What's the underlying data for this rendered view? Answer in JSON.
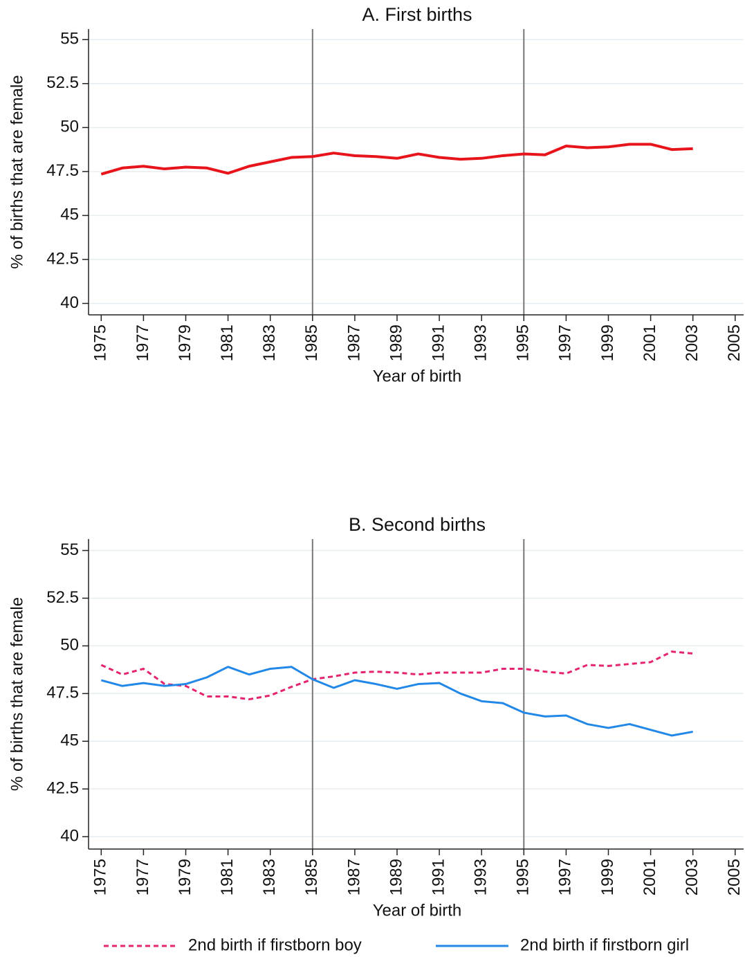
{
  "chart_data": [
    {
      "type": "line",
      "title": "A. First births",
      "xlabel": "Year of birth",
      "ylabel": "% of births that are female",
      "x": [
        1975,
        1976,
        1977,
        1978,
        1979,
        1980,
        1981,
        1982,
        1983,
        1984,
        1985,
        1986,
        1987,
        1988,
        1989,
        1990,
        1991,
        1992,
        1993,
        1994,
        1995,
        1996,
        1997,
        1998,
        1999,
        2000,
        2001,
        2002,
        2003
      ],
      "series": [
        {
          "color": "#e8141c",
          "linestyle": "solid",
          "values": [
            47.35,
            47.7,
            47.8,
            47.65,
            47.75,
            47.7,
            47.4,
            47.8,
            48.05,
            48.3,
            48.35,
            48.55,
            48.4,
            48.35,
            48.25,
            48.5,
            48.3,
            48.2,
            48.25,
            48.4,
            48.5,
            48.45,
            48.95,
            48.85,
            48.9,
            49.05,
            49.05,
            48.75,
            48.8
          ]
        }
      ],
      "xlim": [
        1974.4,
        2005.4
      ],
      "ylim": [
        39.35,
        55.6
      ],
      "xticks": [
        1975,
        1977,
        1979,
        1981,
        1983,
        1985,
        1987,
        1989,
        1991,
        1993,
        1995,
        1997,
        1999,
        2001,
        2003,
        2005
      ],
      "yticks": [
        40,
        42.5,
        45,
        47.5,
        50,
        52.5,
        55
      ],
      "xlines": [
        1985,
        1995
      ],
      "grid": true
    },
    {
      "type": "line",
      "title": "B. Second births",
      "xlabel": "Year of birth",
      "ylabel": "% of births that are female",
      "x": [
        1975,
        1976,
        1977,
        1978,
        1979,
        1980,
        1981,
        1982,
        1983,
        1984,
        1985,
        1986,
        1987,
        1988,
        1989,
        1990,
        1991,
        1992,
        1993,
        1994,
        1995,
        1996,
        1997,
        1998,
        1999,
        2000,
        2001,
        2002,
        2003
      ],
      "series": [
        {
          "name": "2nd birth if firstborn boy",
          "color": "#e5246f",
          "linestyle": "dashed",
          "values": [
            49.0,
            48.5,
            48.8,
            48.0,
            47.9,
            47.35,
            47.35,
            47.2,
            47.4,
            47.85,
            48.25,
            48.4,
            48.6,
            48.65,
            48.6,
            48.5,
            48.6,
            48.6,
            48.6,
            48.8,
            48.8,
            48.65,
            48.55,
            49.0,
            48.95,
            49.05,
            49.15,
            49.7,
            49.6
          ]
        },
        {
          "name": "2nd birth if firstborn girl",
          "color": "#2288e8",
          "linestyle": "solid",
          "values": [
            48.2,
            47.9,
            48.05,
            47.9,
            48.0,
            48.35,
            48.9,
            48.5,
            48.8,
            48.9,
            48.25,
            47.8,
            48.2,
            48.0,
            47.75,
            48.0,
            48.05,
            47.5,
            47.1,
            47.0,
            46.5,
            46.3,
            46.35,
            45.9,
            45.7,
            45.9,
            45.6,
            45.3,
            45.5
          ]
        }
      ],
      "xlim": [
        1974.4,
        2005.4
      ],
      "ylim": [
        39.35,
        55.6
      ],
      "xticks": [
        1975,
        1977,
        1979,
        1981,
        1983,
        1985,
        1987,
        1989,
        1991,
        1993,
        1995,
        1997,
        1999,
        2001,
        2003,
        2005
      ],
      "yticks": [
        40,
        42.5,
        45,
        47.5,
        50,
        52.5,
        55
      ],
      "xlines": [
        1985,
        1995
      ],
      "grid": true,
      "legend": "bottom"
    }
  ]
}
